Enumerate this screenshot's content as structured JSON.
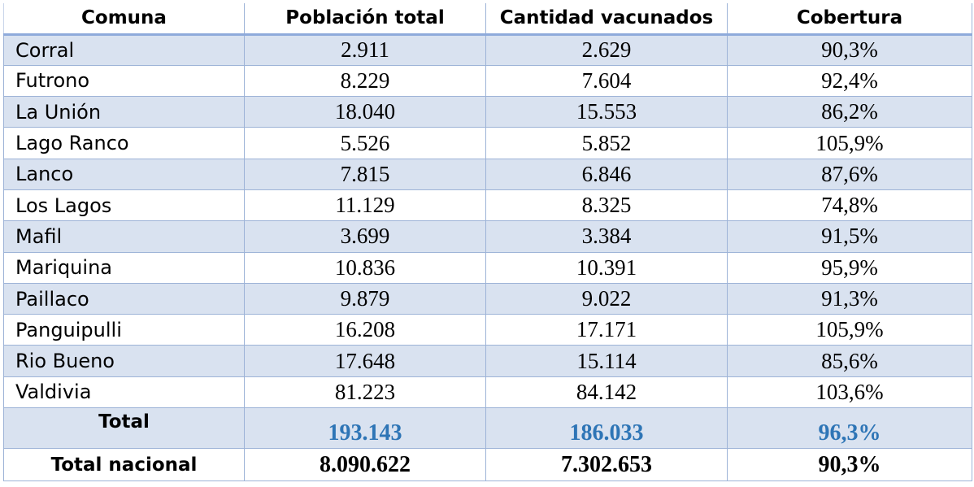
{
  "table": {
    "headers": [
      "Comuna",
      "Población total",
      "Cantidad vacunados",
      "Cobertura"
    ],
    "rows": [
      [
        "Corral",
        "2.911",
        "2.629",
        "90,3%"
      ],
      [
        "Futrono",
        "8.229",
        "7.604",
        "92,4%"
      ],
      [
        "La Unión",
        "18.040",
        "15.553",
        "86,2%"
      ],
      [
        "Lago Ranco",
        "5.526",
        "5.852",
        "105,9%"
      ],
      [
        "Lanco",
        "7.815",
        "6.846",
        "87,6%"
      ],
      [
        "Los Lagos",
        "11.129",
        "8.325",
        "74,8%"
      ],
      [
        "Mafil",
        "3.699",
        "3.384",
        "91,5%"
      ],
      [
        "Mariquina",
        "10.836",
        "10.391",
        "95,9%"
      ],
      [
        "Paillaco",
        "9.879",
        "9.022",
        "91,3%"
      ],
      [
        "Panguipulli",
        "16.208",
        "17.171",
        "105,9%"
      ],
      [
        "Rio Bueno",
        "17.648",
        "15.114",
        "85,6%"
      ],
      [
        "Valdivia",
        "81.223",
        "84.142",
        "103,6%"
      ]
    ],
    "total": [
      "Total",
      "193.143",
      "186.033",
      "96,3%"
    ],
    "national": [
      "Total nacional",
      "8.090.622",
      "7.302.653",
      "90,3%"
    ]
  },
  "colors": {
    "band": "#d9e2f0",
    "total_value": "#2e75b6",
    "border": "#9db3d7"
  }
}
